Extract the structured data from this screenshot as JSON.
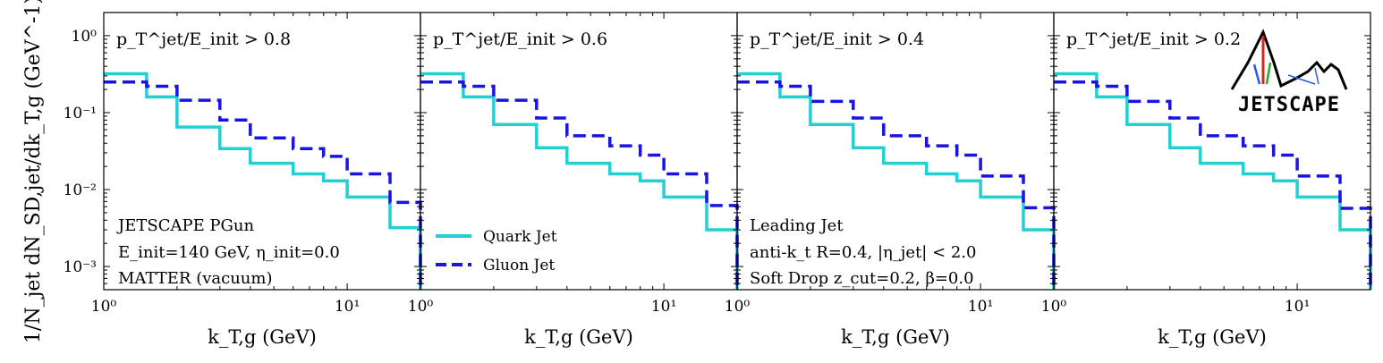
{
  "figure": {
    "ylabel": "1/N_jet dN_SD,jet/dk_T,g (GeV^-1)",
    "xlabel": "k_T,g (GeV)"
  },
  "colors": {
    "quark": "#22cfd3",
    "gluon": "#1a14e0"
  },
  "legend": {
    "quark": "Quark Jet",
    "gluon": "Gluon Jet"
  },
  "annotations": {
    "left": [
      "JETSCAPE PGun",
      "E_init=140 GeV, η_init=0.0",
      "MATTER (vacuum)"
    ],
    "right": [
      "Leading Jet",
      "anti-k_t R=0.4, |η_jet| < 2.0",
      "Soft Drop z_cut=0.2, β=0.0"
    ]
  },
  "logo": {
    "text": "JETSCAPE"
  },
  "chart_data": [
    {
      "type": "line",
      "title": "p_T^jet/E_init > 0.8",
      "xlabel": "k_T,g (GeV)",
      "ylabel": "1/N_jet dN_SD,jet/dk_T,g (GeV^-1)",
      "xscale": "log",
      "yscale": "log",
      "xlim": [
        1,
        20
      ],
      "ylim": [
        0.0005,
        2
      ],
      "x_edges": [
        1,
        1.5,
        2,
        3,
        4,
        6,
        8,
        10,
        15,
        20
      ],
      "series": [
        {
          "name": "Quark Jet",
          "values": [
            0.32,
            0.16,
            0.065,
            0.034,
            0.022,
            0.016,
            0.013,
            0.008,
            0.0032
          ]
        },
        {
          "name": "Gluon Jet",
          "values": [
            0.25,
            0.22,
            0.145,
            0.08,
            0.047,
            0.034,
            0.027,
            0.016,
            0.0068
          ]
        }
      ]
    },
    {
      "type": "line",
      "title": "p_T^jet/E_init > 0.6",
      "xlabel": "k_T,g (GeV)",
      "ylabel": "",
      "xscale": "log",
      "yscale": "log",
      "xlim": [
        1,
        20
      ],
      "ylim": [
        0.0005,
        2
      ],
      "x_edges": [
        1,
        1.5,
        2,
        3,
        4,
        6,
        8,
        10,
        15,
        20
      ],
      "series": [
        {
          "name": "Quark Jet",
          "values": [
            0.32,
            0.16,
            0.07,
            0.035,
            0.022,
            0.016,
            0.013,
            0.008,
            0.003
          ]
        },
        {
          "name": "Gluon Jet",
          "values": [
            0.25,
            0.22,
            0.145,
            0.085,
            0.05,
            0.037,
            0.028,
            0.016,
            0.0062
          ]
        }
      ]
    },
    {
      "type": "line",
      "title": "p_T^jet/E_init > 0.4",
      "xlabel": "k_T,g (GeV)",
      "ylabel": "",
      "xscale": "log",
      "yscale": "log",
      "xlim": [
        1,
        20
      ],
      "ylim": [
        0.0005,
        2
      ],
      "x_edges": [
        1,
        1.5,
        2,
        3,
        4,
        6,
        8,
        10,
        15,
        20
      ],
      "series": [
        {
          "name": "Quark Jet",
          "values": [
            0.32,
            0.16,
            0.07,
            0.035,
            0.022,
            0.016,
            0.013,
            0.008,
            0.003
          ]
        },
        {
          "name": "Gluon Jet",
          "values": [
            0.25,
            0.22,
            0.14,
            0.085,
            0.05,
            0.037,
            0.028,
            0.015,
            0.0058
          ]
        }
      ]
    },
    {
      "type": "line",
      "title": "p_T^jet/E_init > 0.2",
      "xlabel": "k_T,g (GeV)",
      "ylabel": "",
      "xscale": "log",
      "yscale": "log",
      "xlim": [
        1,
        20
      ],
      "ylim": [
        0.0005,
        2
      ],
      "x_edges": [
        1,
        1.5,
        2,
        3,
        4,
        6,
        8,
        10,
        15,
        20
      ],
      "series": [
        {
          "name": "Quark Jet",
          "values": [
            0.32,
            0.16,
            0.07,
            0.035,
            0.022,
            0.016,
            0.013,
            0.008,
            0.003
          ]
        },
        {
          "name": "Gluon Jet",
          "values": [
            0.25,
            0.22,
            0.14,
            0.085,
            0.05,
            0.037,
            0.028,
            0.015,
            0.0057
          ]
        }
      ]
    }
  ]
}
